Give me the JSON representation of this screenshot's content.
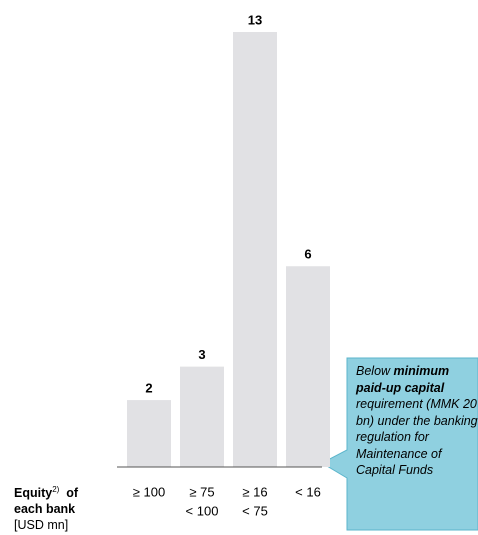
{
  "chart_data": {
    "type": "bar",
    "categories": [
      [
        "≥ 100"
      ],
      [
        "≥ 75",
        "< 100"
      ],
      [
        "≥ 16",
        "< 75"
      ],
      [
        "< 16"
      ]
    ],
    "values": [
      2,
      3,
      13,
      6
    ],
    "color": "#e1e1e4",
    "x_label": [
      "Equity",
      "2)",
      "of",
      "each bank",
      "[USD mn]"
    ],
    "annotation": [
      "Below ",
      "minimum paid-up capital",
      " requirement (MMK 20 bn) under the banking regulation for Maintenance of Capital Funds"
    ],
    "annotation_color": "#8fd0e0"
  }
}
